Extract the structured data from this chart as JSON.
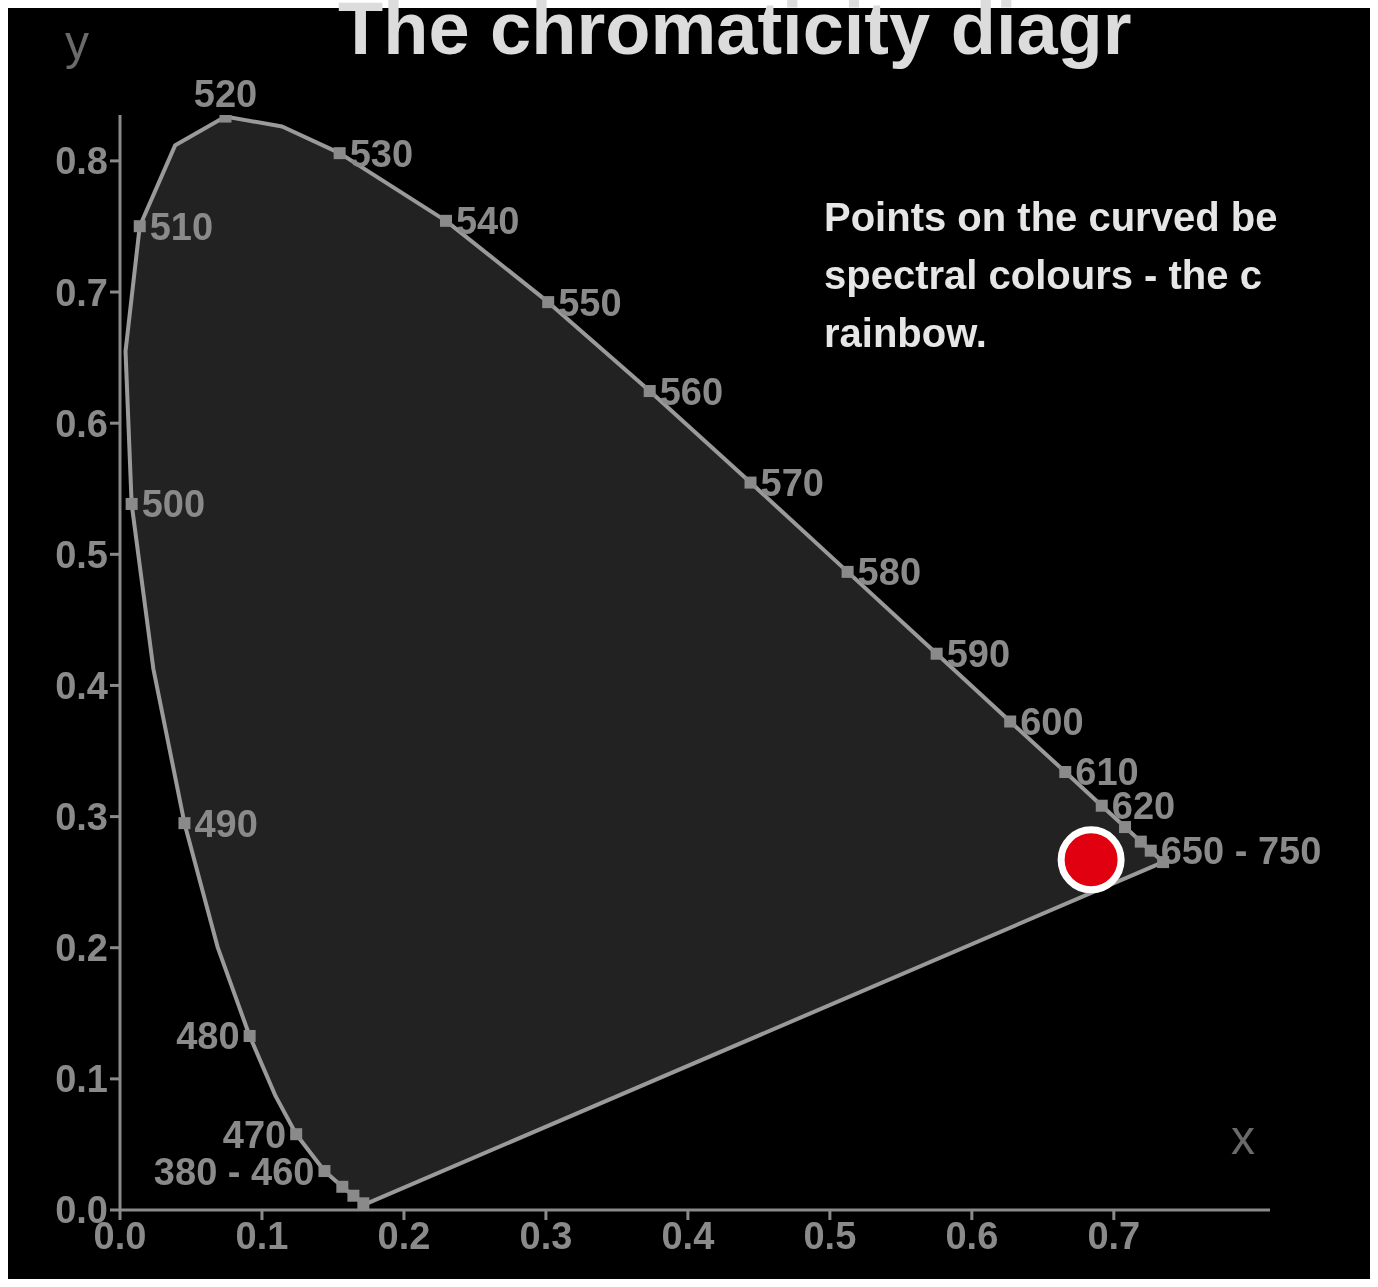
{
  "chart_data": {
    "type": "scatter",
    "title": "The chromaticity diagr",
    "xlabel": "x",
    "ylabel": "y",
    "xlim": [
      0,
      0.81
    ],
    "ylim": [
      0,
      0.835
    ],
    "xticks": [
      {
        "value": 0,
        "label": "0.0"
      },
      0.1,
      0.2,
      0.3,
      0.4,
      0.5,
      0.6,
      0.7
    ],
    "yticks": [
      {
        "value": 0,
        "label": "0.0"
      },
      0.1,
      0.2,
      0.3,
      0.4,
      0.5,
      0.6,
      0.7,
      0.8
    ],
    "grid": false,
    "legend": false,
    "series": [
      {
        "type": "area",
        "color": "#9a9a9a",
        "x": [
          0.1741,
          0.1714,
          0.1644,
          0.1566,
          0.144,
          0.1241,
          0.1096,
          0.0913,
          0.0687,
          0.0454,
          0.0235,
          0.0082,
          0.0039,
          0.0139,
          0.0389,
          0.0743,
          0.1142,
          0.1547,
          0.2296,
          0.3016,
          0.3731,
          0.4441,
          0.5125,
          0.5752,
          0.627,
          0.6658,
          0.6915,
          0.7079,
          0.719,
          0.726,
          0.7347,
          0.1741
        ],
        "values": [
          0.005,
          0.0051,
          0.0109,
          0.0177,
          0.0297,
          0.0578,
          0.0868,
          0.1327,
          0.2007,
          0.295,
          0.4127,
          0.5384,
          0.6548,
          0.7502,
          0.812,
          0.8338,
          0.8262,
          0.8059,
          0.7543,
          0.6923,
          0.6245,
          0.5547,
          0.4866,
          0.4242,
          0.3725,
          0.334,
          0.3083,
          0.292,
          0.2809,
          0.274,
          0.2653,
          0.005
        ]
      },
      {
        "type": "scatter",
        "marker": "square",
        "color": "#8a8a8a",
        "x": [
          0.1714,
          0.1644,
          0.1566,
          0.144,
          0.1241,
          0.0913,
          0.0454,
          0.0082,
          0.0139,
          0.0743,
          0.1547,
          0.2296,
          0.3016,
          0.3731,
          0.4441,
          0.5125,
          0.5752,
          0.627,
          0.6658,
          0.6915,
          0.7079,
          0.719,
          0.726,
          0.7347
        ],
        "values": [
          0.0051,
          0.0109,
          0.0177,
          0.0297,
          0.0578,
          0.1327,
          0.295,
          0.5384,
          0.7502,
          0.8338,
          0.8059,
          0.7543,
          0.6923,
          0.6245,
          0.5547,
          0.4866,
          0.4242,
          0.3725,
          0.334,
          0.3083,
          0.292,
          0.2809,
          0.274,
          0.2653
        ]
      },
      {
        "type": "scatter",
        "marker": "circle",
        "color": "#e00010",
        "x": [
          0.684
        ],
        "values": [
          0.267
        ]
      }
    ],
    "annotations": [
      {
        "text": "380 - 460",
        "x": 0.144,
        "y": 0.0297
      },
      {
        "text": "470",
        "x": 0.1241,
        "y": 0.0578
      },
      {
        "text": "480",
        "x": 0.0913,
        "y": 0.1327
      },
      {
        "text": "490",
        "x": 0.0454,
        "y": 0.295
      },
      {
        "text": "500",
        "x": 0.0082,
        "y": 0.5384
      },
      {
        "text": "510",
        "x": 0.0139,
        "y": 0.7502
      },
      {
        "text": "520",
        "x": 0.0743,
        "y": 0.8338
      },
      {
        "text": "530",
        "x": 0.1547,
        "y": 0.8059
      },
      {
        "text": "540",
        "x": 0.2296,
        "y": 0.7543
      },
      {
        "text": "550",
        "x": 0.3016,
        "y": 0.6923
      },
      {
        "text": "560",
        "x": 0.3731,
        "y": 0.6245
      },
      {
        "text": "570",
        "x": 0.4441,
        "y": 0.5547
      },
      {
        "text": "580",
        "x": 0.5125,
        "y": 0.4866
      },
      {
        "text": "590",
        "x": 0.5752,
        "y": 0.4242
      },
      {
        "text": "600",
        "x": 0.627,
        "y": 0.3725
      },
      {
        "text": "610",
        "x": 0.6658,
        "y": 0.334
      },
      {
        "text": "620",
        "x": 0.6915,
        "y": 0.3083
      },
      {
        "text": "650 - 750",
        "x": 0.726,
        "y": 0.274
      },
      "Points on the curved be\nspectral colours - the c\nrainbow."
    ]
  }
}
